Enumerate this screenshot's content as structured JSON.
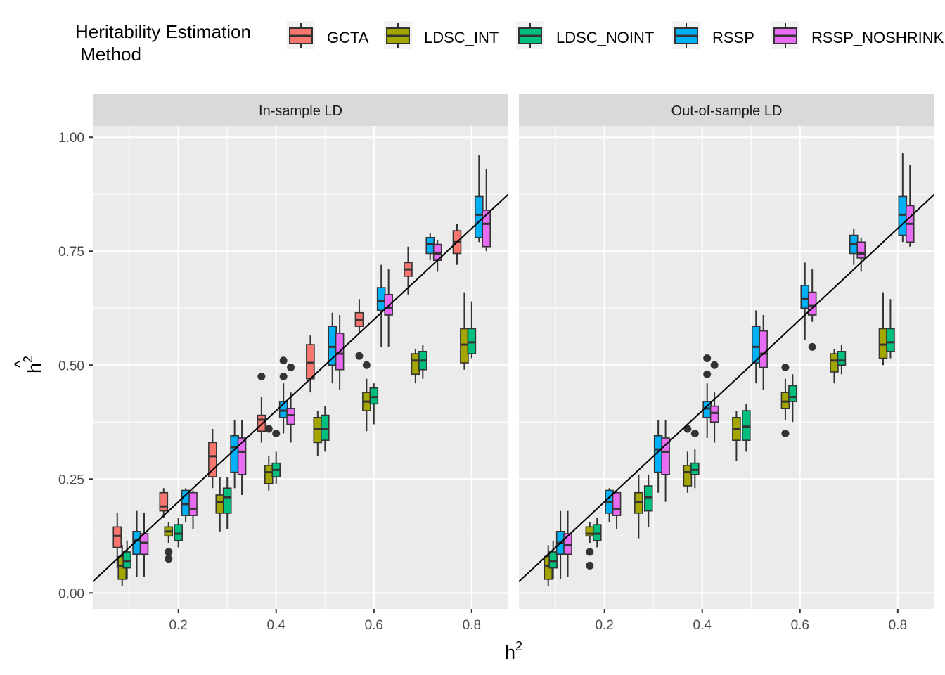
{
  "chart_data": {
    "type": "boxplot",
    "legend": {
      "title_line1": "Heritability Estimation",
      "title_line2": " Method",
      "position": "top"
    },
    "xlabel": "h",
    "xlabel_sup": "2",
    "ylabel": "h",
    "ylabel_sup": "2",
    "ylabel_hat": "^",
    "ylim": [
      -0.035,
      1.025
    ],
    "y_ticks": [
      {
        "v": 0.0,
        "label": "0.00"
      },
      {
        "v": 0.25,
        "label": "0.25"
      },
      {
        "v": 0.5,
        "label": "0.50"
      },
      {
        "v": 0.75,
        "label": "0.75"
      },
      {
        "v": 1.0,
        "label": "1.00"
      }
    ],
    "xlim": [
      0.025,
      0.875
    ],
    "x_ticks": [
      {
        "v": 0.2,
        "label": "0.2"
      },
      {
        "v": 0.4,
        "label": "0.4"
      },
      {
        "v": 0.6,
        "label": "0.6"
      },
      {
        "v": 0.8,
        "label": "0.8"
      }
    ],
    "reference_line": {
      "slope": 1,
      "intercept": 0
    },
    "grid": true,
    "methods": [
      {
        "name": "GCTA",
        "color": "#F8766D"
      },
      {
        "name": "LDSC_INT",
        "color": "#A3A500"
      },
      {
        "name": "LDSC_NOINT",
        "color": "#00BF7D"
      },
      {
        "name": "RSSP",
        "color": "#00B0F6"
      },
      {
        "name": "RSSP_NOSHRINK",
        "color": "#E76BF3"
      }
    ],
    "panels": [
      {
        "title": "In-sample LD",
        "boxes": [
          {
            "method": 0,
            "x": 0.075,
            "stats": [
              0.055,
              0.1,
              0.125,
              0.145,
              0.175
            ],
            "outliers": []
          },
          {
            "method": 1,
            "x": 0.085,
            "stats": [
              0.015,
              0.03,
              0.06,
              0.08,
              0.105
            ],
            "outliers": []
          },
          {
            "method": 2,
            "x": 0.095,
            "stats": [
              0.03,
              0.055,
              0.07,
              0.09,
              0.115
            ],
            "outliers": []
          },
          {
            "method": 3,
            "x": 0.115,
            "stats": [
              0.035,
              0.085,
              0.115,
              0.135,
              0.18
            ],
            "outliers": []
          },
          {
            "method": 4,
            "x": 0.13,
            "stats": [
              0.035,
              0.085,
              0.11,
              0.13,
              0.175
            ],
            "outliers": []
          },
          {
            "method": 0,
            "x": 0.17,
            "stats": [
              0.165,
              0.18,
              0.19,
              0.22,
              0.23
            ],
            "outliers": []
          },
          {
            "method": 1,
            "x": 0.18,
            "stats": [
              0.11,
              0.125,
              0.135,
              0.145,
              0.155
            ],
            "outliers": [
              0.075,
              0.09
            ]
          },
          {
            "method": 2,
            "x": 0.2,
            "stats": [
              0.1,
              0.115,
              0.13,
              0.15,
              0.165
            ],
            "outliers": []
          },
          {
            "method": 3,
            "x": 0.215,
            "stats": [
              0.155,
              0.17,
              0.195,
              0.225,
              0.23
            ],
            "outliers": []
          },
          {
            "method": 4,
            "x": 0.23,
            "stats": [
              0.14,
              0.17,
              0.185,
              0.22,
              0.225
            ],
            "outliers": []
          },
          {
            "method": 0,
            "x": 0.27,
            "stats": [
              0.23,
              0.255,
              0.3,
              0.33,
              0.36
            ],
            "outliers": []
          },
          {
            "method": 1,
            "x": 0.285,
            "stats": [
              0.135,
              0.175,
              0.2,
              0.215,
              0.255
            ],
            "outliers": []
          },
          {
            "method": 2,
            "x": 0.3,
            "stats": [
              0.14,
              0.175,
              0.21,
              0.23,
              0.255
            ],
            "outliers": []
          },
          {
            "method": 3,
            "x": 0.315,
            "stats": [
              0.23,
              0.265,
              0.32,
              0.345,
              0.38
            ],
            "outliers": []
          },
          {
            "method": 4,
            "x": 0.33,
            "stats": [
              0.215,
              0.26,
              0.31,
              0.34,
              0.38
            ],
            "outliers": []
          },
          {
            "method": 0,
            "x": 0.37,
            "stats": [
              0.33,
              0.355,
              0.38,
              0.39,
              0.43
            ],
            "outliers": [
              0.475
            ]
          },
          {
            "method": 1,
            "x": 0.385,
            "stats": [
              0.225,
              0.24,
              0.265,
              0.28,
              0.3
            ],
            "outliers": [
              0.36
            ]
          },
          {
            "method": 2,
            "x": 0.4,
            "stats": [
              0.24,
              0.255,
              0.27,
              0.285,
              0.31
            ],
            "outliers": [
              0.35
            ]
          },
          {
            "method": 3,
            "x": 0.415,
            "stats": [
              0.35,
              0.385,
              0.4,
              0.42,
              0.46
            ],
            "outliers": [
              0.51,
              0.475
            ]
          },
          {
            "method": 4,
            "x": 0.43,
            "stats": [
              0.33,
              0.37,
              0.39,
              0.405,
              0.44
            ],
            "outliers": [
              0.495
            ]
          },
          {
            "method": 0,
            "x": 0.47,
            "stats": [
              0.44,
              0.47,
              0.505,
              0.545,
              0.565
            ],
            "outliers": []
          },
          {
            "method": 1,
            "x": 0.485,
            "stats": [
              0.3,
              0.33,
              0.36,
              0.385,
              0.4
            ],
            "outliers": []
          },
          {
            "method": 2,
            "x": 0.5,
            "stats": [
              0.31,
              0.335,
              0.36,
              0.39,
              0.41
            ],
            "outliers": []
          },
          {
            "method": 3,
            "x": 0.515,
            "stats": [
              0.46,
              0.5,
              0.54,
              0.585,
              0.615
            ],
            "outliers": []
          },
          {
            "method": 4,
            "x": 0.53,
            "stats": [
              0.445,
              0.49,
              0.525,
              0.57,
              0.61
            ],
            "outliers": []
          },
          {
            "method": 0,
            "x": 0.57,
            "stats": [
              0.57,
              0.585,
              0.6,
              0.615,
              0.645
            ],
            "outliers": [
              0.52
            ]
          },
          {
            "method": 1,
            "x": 0.585,
            "stats": [
              0.355,
              0.4,
              0.42,
              0.44,
              0.47
            ],
            "outliers": [
              0.5
            ]
          },
          {
            "method": 2,
            "x": 0.6,
            "stats": [
              0.37,
              0.415,
              0.43,
              0.45,
              0.46
            ],
            "outliers": []
          },
          {
            "method": 3,
            "x": 0.615,
            "stats": [
              0.54,
              0.62,
              0.64,
              0.67,
              0.72
            ],
            "outliers": []
          },
          {
            "method": 4,
            "x": 0.63,
            "stats": [
              0.54,
              0.61,
              0.625,
              0.655,
              0.71
            ],
            "outliers": []
          },
          {
            "method": 0,
            "x": 0.67,
            "stats": [
              0.655,
              0.695,
              0.71,
              0.725,
              0.76
            ],
            "outliers": []
          },
          {
            "method": 1,
            "x": 0.685,
            "stats": [
              0.46,
              0.48,
              0.51,
              0.525,
              0.535
            ],
            "outliers": []
          },
          {
            "method": 2,
            "x": 0.7,
            "stats": [
              0.47,
              0.49,
              0.51,
              0.53,
              0.545
            ],
            "outliers": []
          },
          {
            "method": 3,
            "x": 0.715,
            "stats": [
              0.73,
              0.745,
              0.765,
              0.78,
              0.79
            ],
            "outliers": []
          },
          {
            "method": 4,
            "x": 0.73,
            "stats": [
              0.705,
              0.73,
              0.745,
              0.765,
              0.775
            ],
            "outliers": []
          },
          {
            "method": 0,
            "x": 0.77,
            "stats": [
              0.72,
              0.745,
              0.77,
              0.795,
              0.81
            ],
            "outliers": []
          },
          {
            "method": 1,
            "x": 0.785,
            "stats": [
              0.49,
              0.505,
              0.545,
              0.58,
              0.66
            ],
            "outliers": []
          },
          {
            "method": 2,
            "x": 0.8,
            "stats": [
              0.515,
              0.525,
              0.55,
              0.58,
              0.64
            ],
            "outliers": []
          },
          {
            "method": 3,
            "x": 0.815,
            "stats": [
              0.77,
              0.78,
              0.83,
              0.87,
              0.96
            ],
            "outliers": []
          },
          {
            "method": 4,
            "x": 0.83,
            "stats": [
              0.75,
              0.76,
              0.81,
              0.84,
              0.93
            ],
            "outliers": []
          }
        ]
      },
      {
        "title": "Out-of-sample LD",
        "boxes": [
          {
            "method": 1,
            "x": 0.085,
            "stats": [
              0.015,
              0.03,
              0.06,
              0.08,
              0.105
            ],
            "outliers": []
          },
          {
            "method": 2,
            "x": 0.095,
            "stats": [
              0.03,
              0.055,
              0.07,
              0.09,
              0.115
            ],
            "outliers": []
          },
          {
            "method": 3,
            "x": 0.11,
            "stats": [
              0.03,
              0.085,
              0.11,
              0.135,
              0.18
            ],
            "outliers": []
          },
          {
            "method": 4,
            "x": 0.125,
            "stats": [
              0.035,
              0.085,
              0.105,
              0.13,
              0.18
            ],
            "outliers": []
          },
          {
            "method": 1,
            "x": 0.17,
            "stats": [
              0.11,
              0.125,
              0.13,
              0.145,
              0.155
            ],
            "outliers": [
              0.06,
              0.09
            ]
          },
          {
            "method": 2,
            "x": 0.185,
            "stats": [
              0.1,
              0.115,
              0.13,
              0.15,
              0.165
            ],
            "outliers": []
          },
          {
            "method": 3,
            "x": 0.21,
            "stats": [
              0.155,
              0.175,
              0.2,
              0.225,
              0.23
            ],
            "outliers": []
          },
          {
            "method": 4,
            "x": 0.225,
            "stats": [
              0.14,
              0.17,
              0.185,
              0.22,
              0.225
            ],
            "outliers": []
          },
          {
            "method": 1,
            "x": 0.27,
            "stats": [
              0.12,
              0.175,
              0.2,
              0.22,
              0.26
            ],
            "outliers": []
          },
          {
            "method": 2,
            "x": 0.29,
            "stats": [
              0.145,
              0.18,
              0.21,
              0.235,
              0.26
            ],
            "outliers": []
          },
          {
            "method": 3,
            "x": 0.31,
            "stats": [
              0.22,
              0.265,
              0.315,
              0.345,
              0.38
            ],
            "outliers": []
          },
          {
            "method": 4,
            "x": 0.325,
            "stats": [
              0.2,
              0.26,
              0.31,
              0.34,
              0.38
            ],
            "outliers": []
          },
          {
            "method": 1,
            "x": 0.37,
            "stats": [
              0.22,
              0.235,
              0.265,
              0.28,
              0.31
            ],
            "outliers": [
              0.36
            ]
          },
          {
            "method": 2,
            "x": 0.385,
            "stats": [
              0.23,
              0.26,
              0.27,
              0.285,
              0.315
            ],
            "outliers": [
              0.35
            ]
          },
          {
            "method": 3,
            "x": 0.41,
            "stats": [
              0.34,
              0.385,
              0.405,
              0.42,
              0.46
            ],
            "outliers": [
              0.515,
              0.48
            ]
          },
          {
            "method": 4,
            "x": 0.425,
            "stats": [
              0.33,
              0.375,
              0.395,
              0.41,
              0.44
            ],
            "outliers": [
              0.5
            ]
          },
          {
            "method": 1,
            "x": 0.47,
            "stats": [
              0.29,
              0.335,
              0.36,
              0.385,
              0.4
            ],
            "outliers": []
          },
          {
            "method": 2,
            "x": 0.49,
            "stats": [
              0.31,
              0.335,
              0.365,
              0.4,
              0.415
            ],
            "outliers": []
          },
          {
            "method": 3,
            "x": 0.51,
            "stats": [
              0.46,
              0.505,
              0.54,
              0.585,
              0.62
            ],
            "outliers": []
          },
          {
            "method": 4,
            "x": 0.525,
            "stats": [
              0.445,
              0.495,
              0.525,
              0.575,
              0.61
            ],
            "outliers": []
          },
          {
            "method": 1,
            "x": 0.57,
            "stats": [
              0.38,
              0.405,
              0.42,
              0.44,
              0.47
            ],
            "outliers": [
              0.35,
              0.495
            ]
          },
          {
            "method": 2,
            "x": 0.585,
            "stats": [
              0.375,
              0.42,
              0.43,
              0.455,
              0.48
            ],
            "outliers": []
          },
          {
            "method": 3,
            "x": 0.61,
            "stats": [
              0.555,
              0.625,
              0.645,
              0.675,
              0.725
            ],
            "outliers": []
          },
          {
            "method": 4,
            "x": 0.625,
            "stats": [
              0.595,
              0.61,
              0.63,
              0.66,
              0.71
            ],
            "outliers": [
              0.54
            ]
          },
          {
            "method": 1,
            "x": 0.67,
            "stats": [
              0.46,
              0.485,
              0.51,
              0.525,
              0.535
            ],
            "outliers": []
          },
          {
            "method": 2,
            "x": 0.685,
            "stats": [
              0.48,
              0.5,
              0.51,
              0.53,
              0.545
            ],
            "outliers": []
          },
          {
            "method": 3,
            "x": 0.71,
            "stats": [
              0.72,
              0.745,
              0.765,
              0.785,
              0.8
            ],
            "outliers": []
          },
          {
            "method": 4,
            "x": 0.725,
            "stats": [
              0.705,
              0.735,
              0.745,
              0.77,
              0.78
            ],
            "outliers": []
          },
          {
            "method": 1,
            "x": 0.77,
            "stats": [
              0.5,
              0.515,
              0.545,
              0.58,
              0.66
            ],
            "outliers": []
          },
          {
            "method": 2,
            "x": 0.785,
            "stats": [
              0.515,
              0.53,
              0.55,
              0.58,
              0.645
            ],
            "outliers": []
          },
          {
            "method": 3,
            "x": 0.81,
            "stats": [
              0.77,
              0.785,
              0.83,
              0.87,
              0.965
            ],
            "outliers": []
          },
          {
            "method": 4,
            "x": 0.825,
            "stats": [
              0.76,
              0.77,
              0.81,
              0.85,
              0.94
            ],
            "outliers": []
          }
        ]
      }
    ]
  }
}
